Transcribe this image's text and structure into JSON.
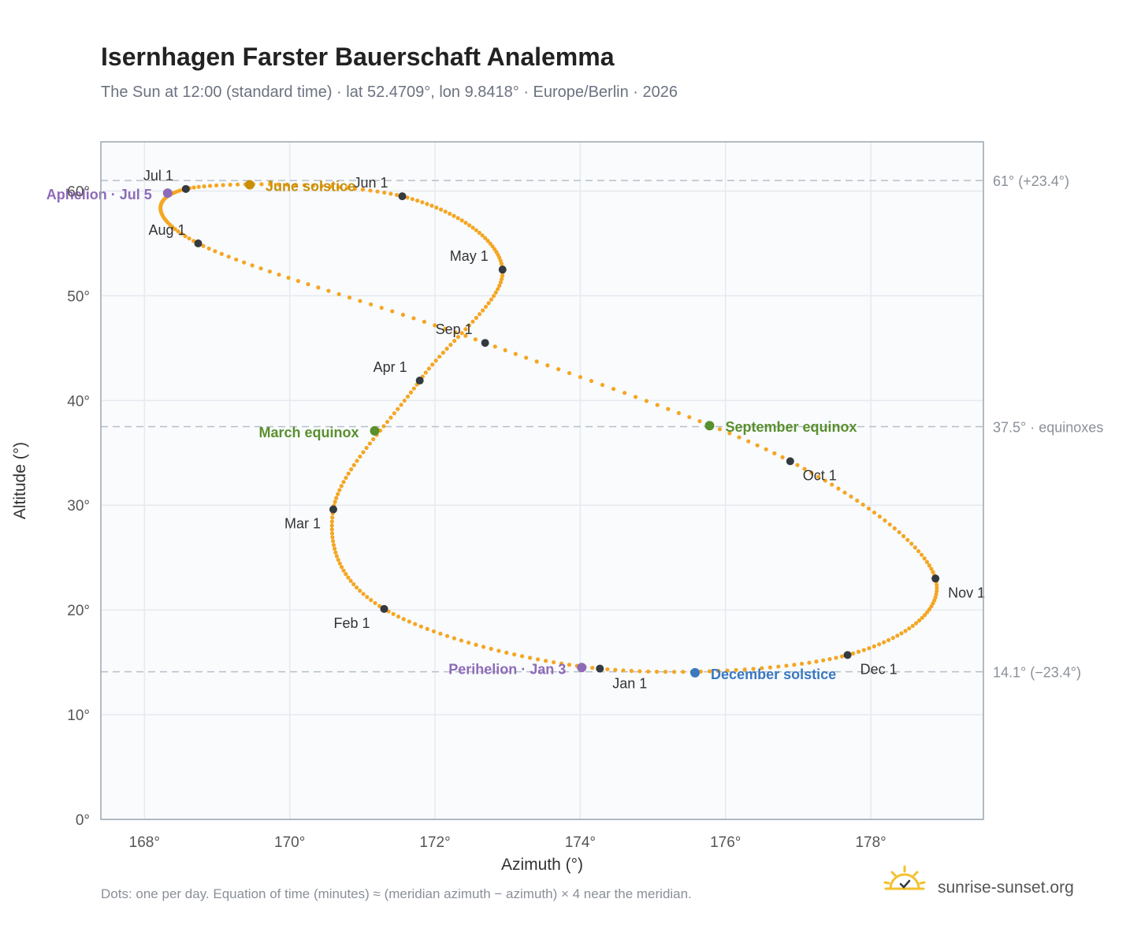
{
  "title": "Isernhagen Farster Bauerschaft Analemma",
  "subtitle": "The Sun at 12:00 (standard time) · lat 52.4709°, lon 9.8418° · Europe/Berlin · 2026",
  "footnote": "Dots: one per day. Equation of time (minutes) ≈ (meridian azimuth − azimuth) × 4 near the meridian.",
  "brand": {
    "name": "sunrise-sunset.org",
    "icon": "sun-check-icon",
    "color": "#f2c12e"
  },
  "colors": {
    "curve": "#f5a623",
    "month_marker": "#333a40",
    "solstice_june": "#c8900a",
    "equinox": "#5a8f2e",
    "solstice_december": "#3a78c0",
    "apsis": "#8e6bb8",
    "grid": "#e6eaee",
    "plot_bg": "#f9fbfd",
    "frame": "#9aa5b1",
    "reference_line": "#b8bfc7"
  },
  "chart_data": {
    "type": "scatter",
    "xlabel": "Azimuth (°)",
    "ylabel": "Altitude (°)",
    "xlim": [
      167.4,
      179.55
    ],
    "ylim": [
      0,
      64.7
    ],
    "x_ticks": [
      168,
      170,
      172,
      174,
      176,
      178
    ],
    "x_tick_labels": [
      "168°",
      "170°",
      "172°",
      "174°",
      "176°",
      "178°"
    ],
    "y_ticks": [
      0,
      10,
      20,
      30,
      40,
      50,
      60
    ],
    "y_tick_labels": [
      "0°",
      "10°",
      "20°",
      "30°",
      "40°",
      "50°",
      "60°"
    ],
    "grid": true,
    "reference_lines": [
      {
        "y": 61.0,
        "label": "61° (+23.4°)"
      },
      {
        "y": 37.5,
        "label": "37.5° · equinoxes"
      },
      {
        "y": 14.1,
        "label": "14.1° (−23.4°)"
      }
    ],
    "month_markers": [
      {
        "label": "Jan 1",
        "date": "2026-01-01",
        "azimuth": 174.27,
        "altitude": 14.4
      },
      {
        "label": "Feb 1",
        "date": "2026-02-01",
        "azimuth": 171.3,
        "altitude": 20.1
      },
      {
        "label": "Mar 1",
        "date": "2026-03-01",
        "azimuth": 170.6,
        "altitude": 29.6
      },
      {
        "label": "Apr 1",
        "date": "2026-04-01",
        "azimuth": 171.79,
        "altitude": 41.9
      },
      {
        "label": "May 1",
        "date": "2026-05-01",
        "azimuth": 172.93,
        "altitude": 52.5
      },
      {
        "label": "Jun 1",
        "date": "2026-06-01",
        "azimuth": 171.55,
        "altitude": 59.5
      },
      {
        "label": "Jul 1",
        "date": "2026-07-01",
        "azimuth": 168.57,
        "altitude": 60.2
      },
      {
        "label": "Aug 1",
        "date": "2026-08-01",
        "azimuth": 168.74,
        "altitude": 55.0
      },
      {
        "label": "Sep 1",
        "date": "2026-09-01",
        "azimuth": 172.69,
        "altitude": 45.5
      },
      {
        "label": "Oct 1",
        "date": "2026-10-01",
        "azimuth": 176.89,
        "altitude": 34.2
      },
      {
        "label": "Nov 1",
        "date": "2026-11-01",
        "azimuth": 178.89,
        "altitude": 23.0
      },
      {
        "label": "Dec 1",
        "date": "2026-12-01",
        "azimuth": 177.68,
        "altitude": 15.7
      }
    ],
    "events": [
      {
        "label": "March equinox",
        "azimuth": 171.17,
        "altitude": 37.1,
        "color": "#5a8f2e"
      },
      {
        "label": "June solstice",
        "azimuth": 169.45,
        "altitude": 60.6,
        "color": "#c8900a"
      },
      {
        "label": "September equinox",
        "azimuth": 175.78,
        "altitude": 37.6,
        "color": "#5a8f2e"
      },
      {
        "label": "December solstice",
        "azimuth": 175.58,
        "altitude": 14.0,
        "color": "#3a78c0"
      },
      {
        "label": "Perihelion · Jan 3",
        "azimuth": 174.02,
        "altitude": 14.5,
        "color": "#8e6bb8"
      },
      {
        "label": "Aphelion · Jul 5",
        "azimuth": 168.32,
        "altitude": 59.8,
        "color": "#8e6bb8"
      }
    ]
  }
}
